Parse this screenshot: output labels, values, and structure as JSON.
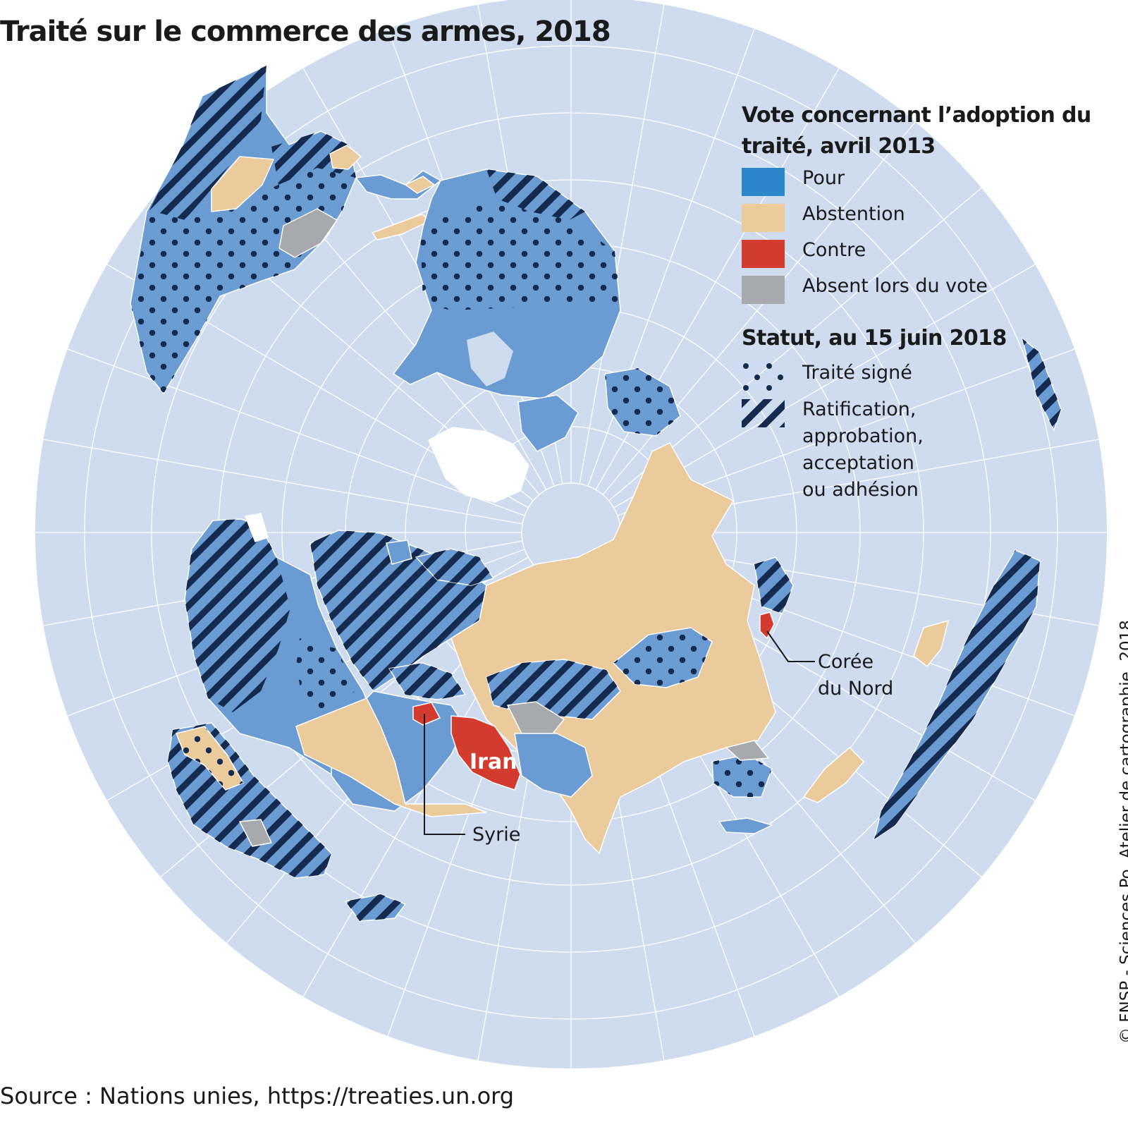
{
  "title": "Traité sur le commerce des armes, 2018",
  "legend": {
    "vote_heading": "Vote concernant l’adoption du traité, avril 2013",
    "vote_items": [
      {
        "label": "Pour",
        "color": "#2b87c8"
      },
      {
        "label": "Abstention",
        "color": "#ebcb9c"
      },
      {
        "label": "Contre",
        "color": "#d23b2e"
      },
      {
        "label": "Absent lors du vote",
        "color": "#a7a9ac"
      }
    ],
    "status_heading": "Statut, au 15 juin 2018",
    "status_items": [
      {
        "label": "Traité signé",
        "pattern": "dots"
      },
      {
        "label": "Ratification, approbation, acceptation ou adhésion",
        "pattern": "stripes"
      }
    ]
  },
  "map_labels": {
    "iran": "Iran",
    "syria": "Syrie",
    "north_korea_line1": "Corée",
    "north_korea_line2": "du Nord"
  },
  "colors": {
    "ocean": "#cfdcef",
    "graticule": "#ffffff",
    "land_for": "#6a9bd2",
    "land_abstention": "#ebcb9c",
    "land_against": "#d23b2e",
    "land_absent": "#a7a9ac",
    "pattern_ink": "#142a4e",
    "ice": "#ffffff"
  },
  "credit": "© FNSP - Sciences Po, Atelier de cartographie, 2018",
  "source": "Source : Nations unies, https://treaties.un.org"
}
